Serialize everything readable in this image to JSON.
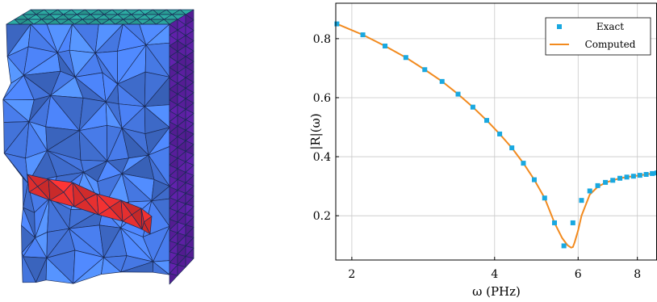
{
  "figure": {
    "colors": {
      "mesh_top": "#2aa39a",
      "mesh_front": "#4a7ff0",
      "mesh_side": "#5a1f9e",
      "mesh_highlight": "#e83030",
      "mesh_edges": "#1a2a55",
      "exact": "#19a8e0",
      "computed": "#f28a1e"
    },
    "mesh_icon": "tetrahedral-mesh-block"
  },
  "chart_data": {
    "type": "line",
    "title": "",
    "xlabel": "ω (PHz)",
    "ylabel": "|R|(ω)",
    "xscale": "log",
    "xlim": [
      1.85,
      8.8
    ],
    "ylim": [
      0.05,
      0.92
    ],
    "xticks": [
      2,
      4,
      6,
      8
    ],
    "yticks": [
      0.2,
      0.4,
      0.6,
      0.8
    ],
    "grid": true,
    "legend_position": "top-right",
    "series": [
      {
        "name": "Exact",
        "style": "markers",
        "x": [
          1.86,
          2.11,
          2.35,
          2.6,
          2.85,
          3.1,
          3.35,
          3.6,
          3.85,
          4.1,
          4.35,
          4.6,
          4.85,
          5.1,
          5.35,
          5.6,
          5.85,
          6.1,
          6.35,
          6.6,
          6.85,
          7.1,
          7.35,
          7.6,
          7.85,
          8.1,
          8.35,
          8.6,
          8.8
        ],
        "y": [
          0.85,
          0.813,
          0.775,
          0.736,
          0.695,
          0.655,
          0.612,
          0.568,
          0.523,
          0.477,
          0.43,
          0.378,
          0.322,
          0.26,
          0.176,
          0.098,
          0.176,
          0.252,
          0.284,
          0.302,
          0.313,
          0.32,
          0.327,
          0.331,
          0.334,
          0.337,
          0.34,
          0.343,
          0.345
        ]
      },
      {
        "name": "Computed",
        "style": "line",
        "x": [
          1.86,
          2.11,
          2.35,
          2.6,
          2.85,
          3.1,
          3.35,
          3.6,
          3.85,
          4.1,
          4.35,
          4.6,
          4.85,
          5.1,
          5.35,
          5.55,
          5.7,
          5.8,
          5.85,
          5.9,
          6.0,
          6.1,
          6.35,
          6.6,
          6.85,
          7.1,
          7.35,
          7.6,
          7.85,
          8.1,
          8.35,
          8.6,
          8.8
        ],
        "y": [
          0.85,
          0.813,
          0.775,
          0.736,
          0.695,
          0.655,
          0.612,
          0.568,
          0.523,
          0.477,
          0.43,
          0.378,
          0.322,
          0.26,
          0.176,
          0.125,
          0.1,
          0.092,
          0.094,
          0.11,
          0.15,
          0.2,
          0.272,
          0.298,
          0.312,
          0.32,
          0.327,
          0.331,
          0.334,
          0.337,
          0.34,
          0.343,
          0.345
        ]
      }
    ]
  }
}
